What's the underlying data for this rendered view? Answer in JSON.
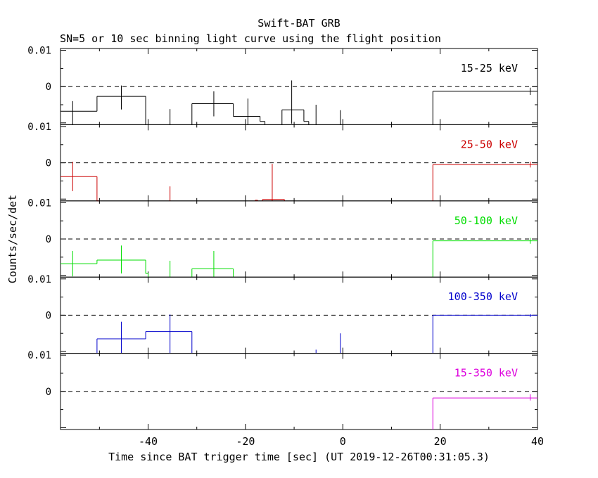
{
  "title": "Swift-BAT GRB",
  "subtitle": "SN=5 or 10 sec binning light curve using the flight position",
  "xlabel": "Time since BAT trigger time [sec] (UT 2019-12-26T00:31:05.3)",
  "ylabel": "Counts/sec/det",
  "colors": {
    "black": "#000000",
    "red": "#cc0000",
    "green": "#00dd00",
    "blue": "#0000cc",
    "magenta": "#dd00dd"
  },
  "chart_data": {
    "type": "line",
    "x_range": [
      -58,
      40
    ],
    "x_ticks": [
      -40,
      -20,
      0,
      20,
      40
    ],
    "x_tick_labels": [
      "-40",
      "-20",
      "0",
      "20",
      "40"
    ],
    "y_range": [
      -0.0105,
      0.0105
    ],
    "y_ticks": [
      0.01,
      0
    ],
    "y_tick_labels": [
      "0.01",
      "0"
    ],
    "zero_line": "dashed",
    "panels": [
      {
        "label": "15-25 keV",
        "color": "#000000",
        "steps": [
          {
            "x0": -58,
            "x1": -50.5,
            "y": -0.0068
          },
          {
            "x0": -50.5,
            "x1": -40.5,
            "y": -0.0027
          },
          {
            "x0": -31,
            "x1": -22.5,
            "y": -0.0047
          },
          {
            "x0": -22.5,
            "x1": -17,
            "y": -0.0082
          },
          {
            "x0": -17,
            "x1": -16,
            "y": -0.0096
          },
          {
            "x0": -12.5,
            "x1": -8,
            "y": -0.0064
          },
          {
            "x0": -8,
            "x1": -7,
            "y": -0.0096
          },
          {
            "x0": 18.5,
            "x1": 40,
            "y": -0.0013
          }
        ],
        "errors": [
          {
            "x": -55.5,
            "y": -0.0068,
            "lo": -0.0105,
            "hi": -0.004
          },
          {
            "x": -45.5,
            "y": -0.0027,
            "lo": -0.0063,
            "hi": 0.0003
          },
          {
            "x": -35.5,
            "y": -0.0102,
            "lo": -0.0105,
            "hi": -0.0062
          },
          {
            "x": -26.5,
            "y": -0.0047,
            "lo": -0.0082,
            "hi": -0.0013
          },
          {
            "x": -19.5,
            "y": -0.0082,
            "lo": -0.0105,
            "hi": -0.0033
          },
          {
            "x": -10.5,
            "y": -0.0064,
            "lo": -0.0102,
            "hi": 0.0017
          },
          {
            "x": -5.5,
            "y": -0.0102,
            "lo": -0.0105,
            "hi": -0.005
          },
          {
            "x": -0.5,
            "y": -0.0102,
            "lo": -0.0105,
            "hi": -0.0065
          },
          {
            "x": 38.5,
            "y": -0.0013,
            "lo": -0.0023,
            "hi": -0.0003
          }
        ]
      },
      {
        "label": "25-50 keV",
        "color": "#cc0000",
        "steps": [
          {
            "x0": -58,
            "x1": -50.5,
            "y": -0.0038
          },
          {
            "x0": -50.5,
            "x1": -50,
            "y": -0.0105
          },
          {
            "x0": -18,
            "x1": -17.5,
            "y": -0.0103
          },
          {
            "x0": -16.5,
            "x1": -12,
            "y": -0.0101
          },
          {
            "x0": 18.5,
            "x1": 40,
            "y": -0.0005
          }
        ],
        "errors": [
          {
            "x": -55.5,
            "y": -0.0038,
            "lo": -0.0078,
            "hi": 0.0003
          },
          {
            "x": -35.5,
            "y": -0.0105,
            "lo": -0.0105,
            "hi": -0.0065
          },
          {
            "x": -14.5,
            "y": -0.0101,
            "lo": -0.0105,
            "hi": -0.0003
          },
          {
            "x": 38.5,
            "y": -0.0005,
            "lo": -0.0013,
            "hi": 0.0003
          }
        ]
      },
      {
        "label": "50-100 keV",
        "color": "#00dd00",
        "steps": [
          {
            "x0": -58,
            "x1": -50.5,
            "y": -0.0068
          },
          {
            "x0": -50.5,
            "x1": -40.5,
            "y": -0.0058
          },
          {
            "x0": -40.5,
            "x1": -40,
            "y": -0.0095
          },
          {
            "x0": -31,
            "x1": -22.5,
            "y": -0.0082
          },
          {
            "x0": 18.5,
            "x1": 40,
            "y": -0.0005
          }
        ],
        "errors": [
          {
            "x": -55.5,
            "y": -0.0068,
            "lo": -0.0103,
            "hi": -0.0033
          },
          {
            "x": -45.5,
            "y": -0.0058,
            "lo": -0.0095,
            "hi": -0.0018
          },
          {
            "x": -35.5,
            "y": -0.0105,
            "lo": -0.0105,
            "hi": -0.006
          },
          {
            "x": -26.5,
            "y": -0.0082,
            "lo": -0.0105,
            "hi": -0.0033
          },
          {
            "x": 38.5,
            "y": -0.0005,
            "lo": -0.0013,
            "hi": 0.0003
          }
        ]
      },
      {
        "label": "100-350 keV",
        "color": "#0000cc",
        "steps": [
          {
            "x0": -50.5,
            "x1": -40.5,
            "y": -0.0065
          },
          {
            "x0": -40.5,
            "x1": -31,
            "y": -0.0045
          },
          {
            "x0": 18.5,
            "x1": 40,
            "y": 0.0
          }
        ],
        "errors": [
          {
            "x": -45.5,
            "y": -0.0065,
            "lo": -0.0105,
            "hi": -0.0018
          },
          {
            "x": -35.5,
            "y": -0.0045,
            "lo": -0.0105,
            "hi": 0.0002
          },
          {
            "x": -5.5,
            "y": -0.0105,
            "lo": -0.0105,
            "hi": -0.0095
          },
          {
            "x": -0.5,
            "y": -0.0105,
            "lo": -0.0105,
            "hi": -0.005
          },
          {
            "x": 38.5,
            "y": 0.0,
            "lo": -0.0005,
            "hi": 0.0003
          }
        ]
      },
      {
        "label": "15-350 keV",
        "color": "#dd00dd",
        "steps": [
          {
            "x0": 18.5,
            "x1": 40,
            "y": -0.0018
          }
        ],
        "errors": [
          {
            "x": 38.5,
            "y": -0.0018,
            "lo": -0.0025,
            "hi": -0.0008
          }
        ]
      }
    ]
  }
}
